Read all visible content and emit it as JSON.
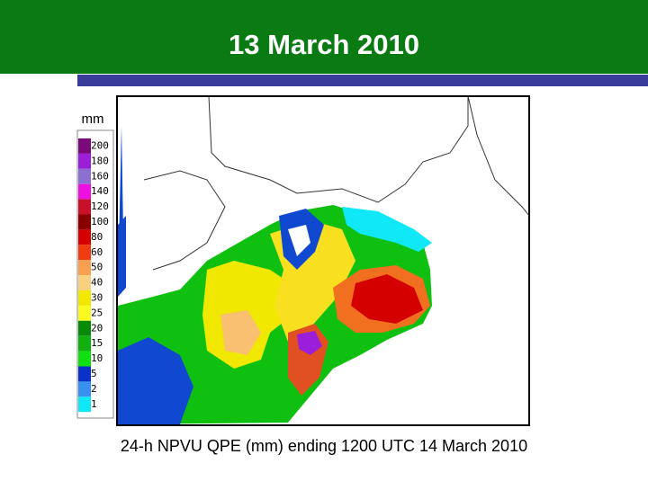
{
  "header": {
    "title": "13 March 2010"
  },
  "legend": {
    "unit": "mm",
    "entries": [
      {
        "label": "200",
        "color": "#7a0a7a"
      },
      {
        "label": "180",
        "color": "#9b1ed8"
      },
      {
        "label": "160",
        "color": "#8c6fd0"
      },
      {
        "label": "140",
        "color": "#ee10e0"
      },
      {
        "label": "120",
        "color": "#c8102a"
      },
      {
        "label": "100",
        "color": "#8a0000"
      },
      {
        "label": "80",
        "color": "#d40000"
      },
      {
        "label": "60",
        "color": "#f03c10"
      },
      {
        "label": "50",
        "color": "#f8a050"
      },
      {
        "label": "40",
        "color": "#f8d080"
      },
      {
        "label": "30",
        "color": "#f0e800"
      },
      {
        "label": "25",
        "color": "#fafa20"
      },
      {
        "label": "20",
        "color": "#088a08"
      },
      {
        "label": "15",
        "color": "#10b010"
      },
      {
        "label": "10",
        "color": "#10e010"
      },
      {
        "label": "5",
        "color": "#0a32c8"
      },
      {
        "label": "2",
        "color": "#3890f0"
      },
      {
        "label": "1",
        "color": "#10e8f8"
      }
    ]
  },
  "caption": "24-h NPVU QPE (mm) ending 1200 UTC 14 March 2010"
}
